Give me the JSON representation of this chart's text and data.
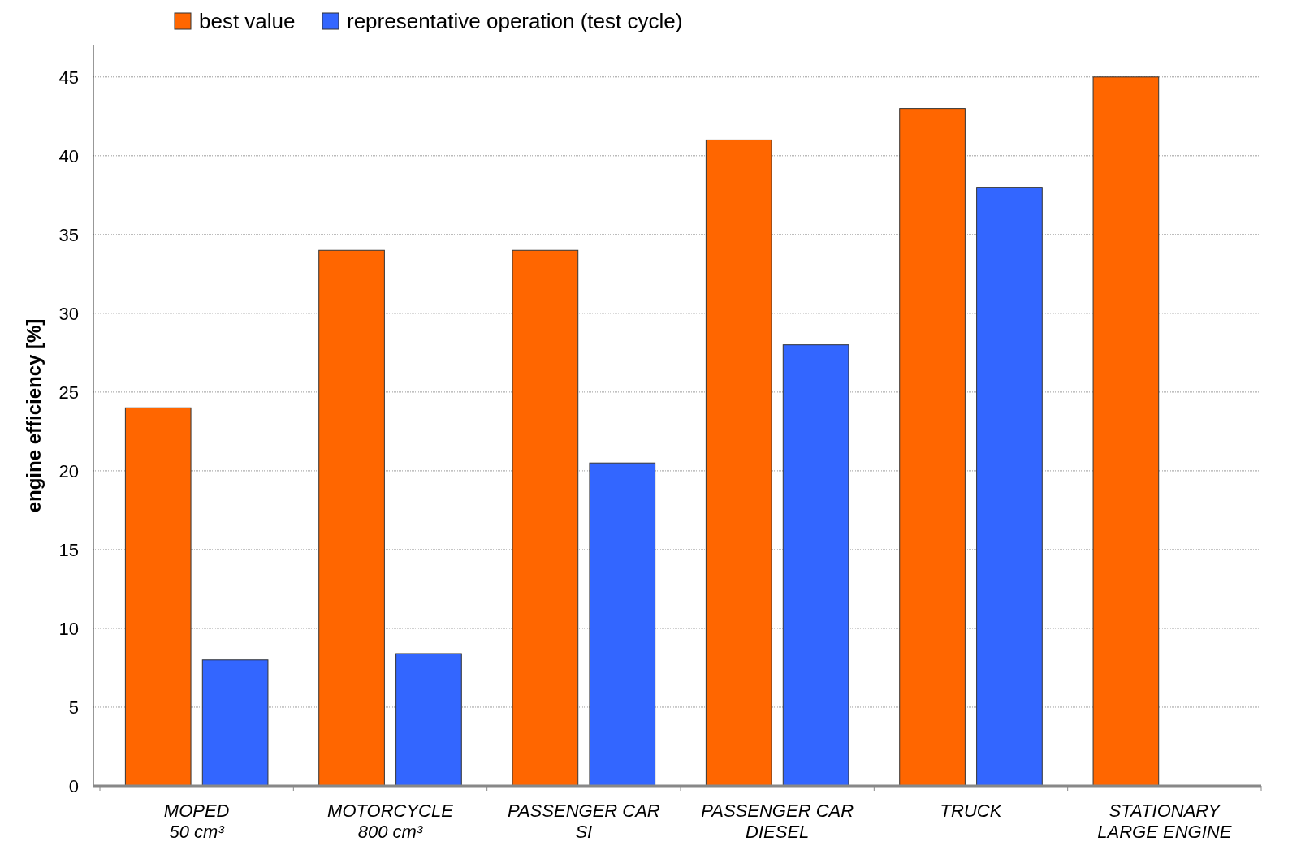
{
  "chart_data": {
    "type": "bar",
    "ylabel": "engine efficiency [%]",
    "categories": [
      "MOPED\n50 cm³",
      "MOTORCYCLE\n800 cm³",
      "PASSENGER CAR\nSI",
      "PASSENGER CAR\nDIESEL",
      "TRUCK",
      "STATIONARY\nLARGE ENGINE"
    ],
    "series": [
      {
        "name": "best value",
        "color": "#ff6600",
        "values": [
          24,
          34,
          34,
          41,
          43,
          45
        ]
      },
      {
        "name": "representative operation (test cycle)",
        "color": "#3366ff",
        "values": [
          8,
          8.4,
          20.5,
          28,
          38,
          null
        ]
      }
    ],
    "ylim": [
      0,
      47
    ],
    "yticks": [
      0,
      5,
      10,
      15,
      20,
      25,
      30,
      35,
      40,
      45
    ],
    "grid": "y",
    "legend": "top left"
  }
}
